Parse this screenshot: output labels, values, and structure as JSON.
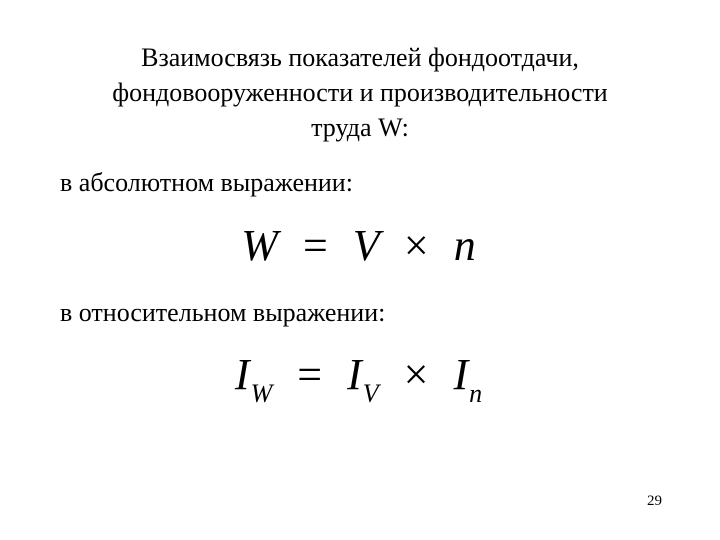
{
  "content": {
    "heading": "Взаимосвязь показателей фондоотдачи, фондовооруженности и производительности труда W:",
    "sub1": "в абсолютном выражении:",
    "sub2": "в относительном выражении:",
    "formula1": {
      "lhs": "W",
      "eq": "=",
      "rhs1": "V",
      "times": "×",
      "rhs2": "n"
    },
    "formula2": {
      "lvar": "I",
      "lsub": "W",
      "eq": "=",
      "rvar1": "I",
      "rsub1": "V",
      "times": "×",
      "rvar2": "I",
      "rsub2": "n"
    },
    "page_number": "29"
  },
  "style": {
    "background_color": "#ffffff",
    "text_color": "#000000",
    "heading_fontsize": 26,
    "formula_fontsize": 44,
    "sub_fontsize": 26,
    "pagenum_fontsize": 15,
    "font_family": "Times New Roman"
  }
}
